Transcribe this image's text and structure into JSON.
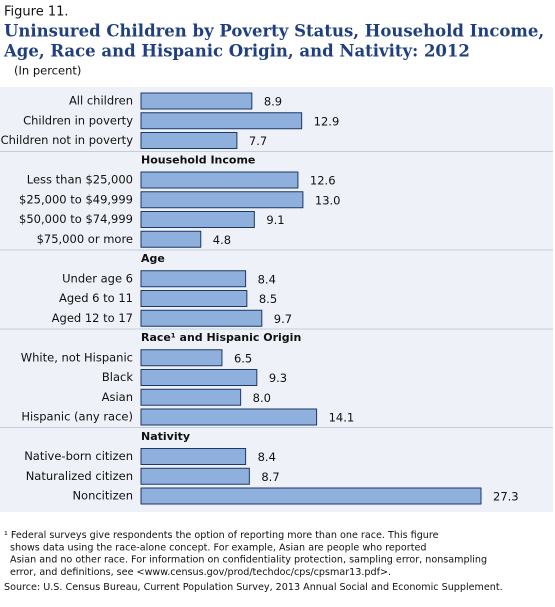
{
  "chart_data": {
    "type": "grouped-hbar",
    "figure_label": "Figure 11.",
    "title_lines": [
      "Uninsured Children by Poverty Status, Household Income,",
      "Age, Race and Hispanic Origin, and Nativity: 2012"
    ],
    "subtitle": "(In percent)",
    "color": "#8fb0dc",
    "groups": [
      {
        "categories": [
          "All children",
          "Children in poverty",
          "Children not in poverty"
        ],
        "values": [
          8.9,
          12.9,
          7.7
        ]
      },
      {
        "label": "Household Income",
        "categories": [
          "Less than $25,000",
          "$25,000 to $49,999",
          "$50,000 to $74,999",
          "$75,000 or more"
        ],
        "values": [
          12.6,
          13.0,
          9.1,
          4.8
        ],
        "value_labels": [
          "12.6",
          "13.0",
          "9.1",
          "4.8"
        ]
      },
      {
        "label": "Age",
        "categories": [
          "Under age 6",
          "Aged 6 to 11",
          "Aged 12 to 17"
        ],
        "values": [
          8.4,
          8.5,
          9.7
        ]
      },
      {
        "label": "Race¹ and Hispanic Origin",
        "categories": [
          "White, not Hispanic",
          "Black",
          "Asian",
          "Hispanic (any race)"
        ],
        "values": [
          6.5,
          9.3,
          8.0,
          14.1
        ],
        "value_labels": [
          "6.5",
          "9.3",
          "8.0",
          "14.1"
        ]
      },
      {
        "label": "Nativity",
        "categories": [
          "Native-born citizen",
          "Naturalized citizen",
          "Noncitizen"
        ],
        "values": [
          8.4,
          8.7,
          27.3
        ]
      }
    ],
    "footnote_lines": [
      "¹ Federal surveys give respondents the option of reporting more than one race.  This figure",
      "shows data using the race-alone concept.  For example, Asian are people who reported",
      "Asian and no other race. For information on confidentiality protection, sampling error, nonsampling",
      "error, and definitions, see <www.census.gov/prod/techdoc/cps/cpsmar13.pdf>."
    ],
    "source": "Source: U.S. Census Bureau, Current Population Survey, 2013 Annual Social and Economic Supplement."
  }
}
